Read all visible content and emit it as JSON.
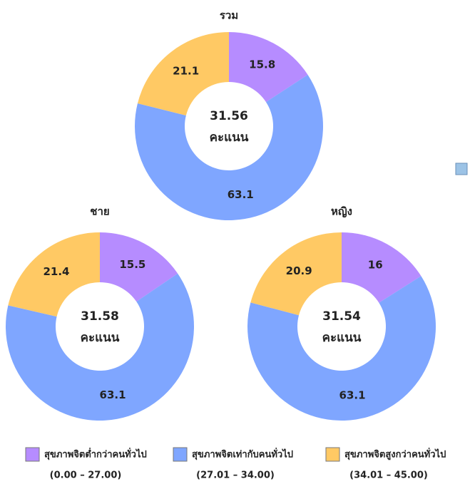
{
  "chart_data": [
    {
      "type": "donut",
      "title": "รวม",
      "center_value": "31.56",
      "center_label": "คะแนน",
      "values": [
        15.8,
        63.1,
        21.1
      ]
    },
    {
      "type": "donut",
      "title": "ชาย",
      "center_value": "31.58",
      "center_label": "คะแนน",
      "values": [
        15.5,
        63.1,
        21.4
      ]
    },
    {
      "type": "donut",
      "title": "หญิง",
      "center_value": "31.54",
      "center_label": "คะแนน",
      "values": [
        16.0,
        63.1,
        20.9
      ]
    }
  ],
  "legend": {
    "items": [
      {
        "label": "สุขภาพจิตต่ำกว่าคนทั่วไป",
        "range": "(0.00 – 27.00)",
        "color": "#b68cff"
      },
      {
        "label": "สุขภาพจิตเท่ากับคนทั่วไป",
        "range": "(27.01 – 34.00)",
        "color": "#7fa6ff"
      },
      {
        "label": "สุขภาพจิตสูงกว่าคนทั่วไป",
        "range": "(34.01 – 45.00)",
        "color": "#ffc964"
      }
    ]
  }
}
